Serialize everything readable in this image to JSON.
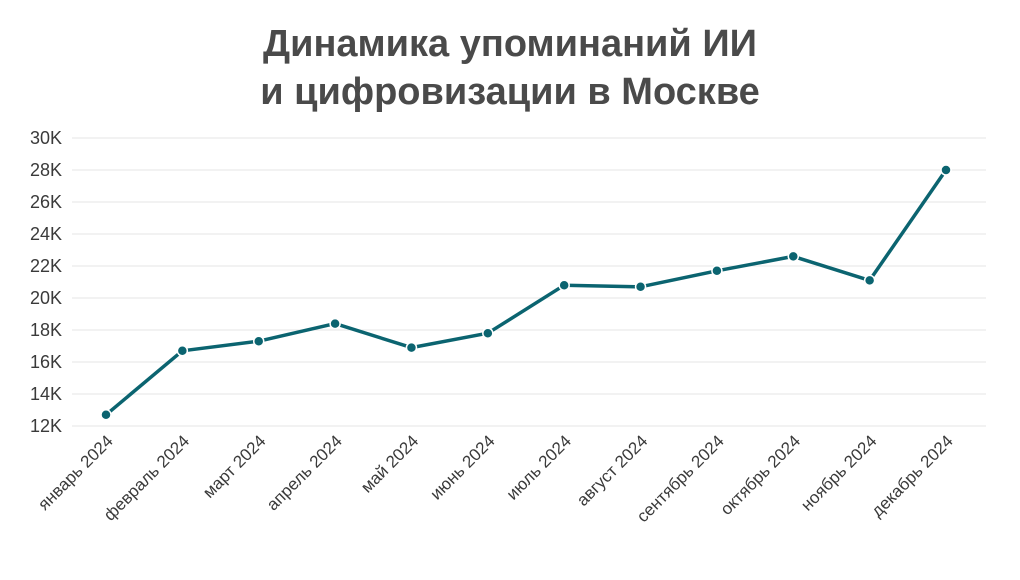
{
  "chart_data": {
    "type": "line",
    "title_line1": "Динамика упоминаний ИИ",
    "title_line2": "и цифровизации в Москве",
    "xlabel": "",
    "ylabel": "",
    "categories": [
      "январь 2024",
      "февраль 2024",
      "март 2024",
      "апрель 2024",
      "май 2024",
      "июнь 2024",
      "июль 2024",
      "август 2024",
      "сентябрь 2024",
      "октябрь 2024",
      "ноябрь 2024",
      "декабрь 2024"
    ],
    "series": [
      {
        "values": [
          12700,
          16700,
          17300,
          18400,
          16900,
          17800,
          20800,
          20700,
          21700,
          22600,
          21100,
          28000
        ]
      }
    ],
    "ylim": [
      12000,
      30000
    ],
    "yticks": [
      12000,
      14000,
      16000,
      18000,
      20000,
      22000,
      24000,
      26000,
      28000,
      30000
    ],
    "ytick_labels": [
      "12K",
      "14K",
      "16K",
      "18K",
      "20K",
      "22K",
      "24K",
      "26K",
      "28K",
      "30K"
    ],
    "grid": true,
    "legend": "none",
    "colors": {
      "line": "#0b6470",
      "grid": "#e6e6e6",
      "title": "#4a4a4a",
      "text": "#3a3a3a"
    }
  }
}
